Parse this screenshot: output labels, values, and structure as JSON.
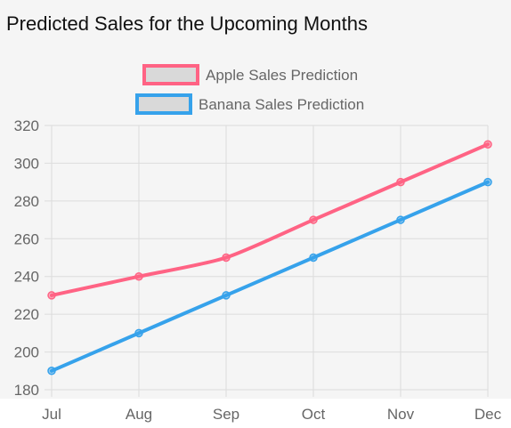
{
  "page": {
    "title": "Predicted Sales for the Upcoming Months"
  },
  "colors": {
    "apple": "#ff6384",
    "banana": "#36a2eb",
    "legend_fill": "#d9d9d9",
    "grid": "#dcdcdc",
    "tick_text": "#666666"
  },
  "chart_data": {
    "type": "line",
    "title": "",
    "xlabel": "",
    "ylabel": "",
    "categories": [
      "Jul",
      "Aug",
      "Sep",
      "Oct",
      "Nov",
      "Dec"
    ],
    "ylim": [
      180,
      320
    ],
    "yticks": [
      180,
      200,
      220,
      240,
      260,
      280,
      300,
      320
    ],
    "grid": true,
    "legend_position": "top",
    "series": [
      {
        "name": "Apple Sales Prediction",
        "color": "#ff6384",
        "values": [
          230,
          240,
          250,
          270,
          290,
          310
        ]
      },
      {
        "name": "Banana Sales Prediction",
        "color": "#36a2eb",
        "values": [
          190,
          210,
          230,
          250,
          270,
          290
        ]
      }
    ]
  }
}
